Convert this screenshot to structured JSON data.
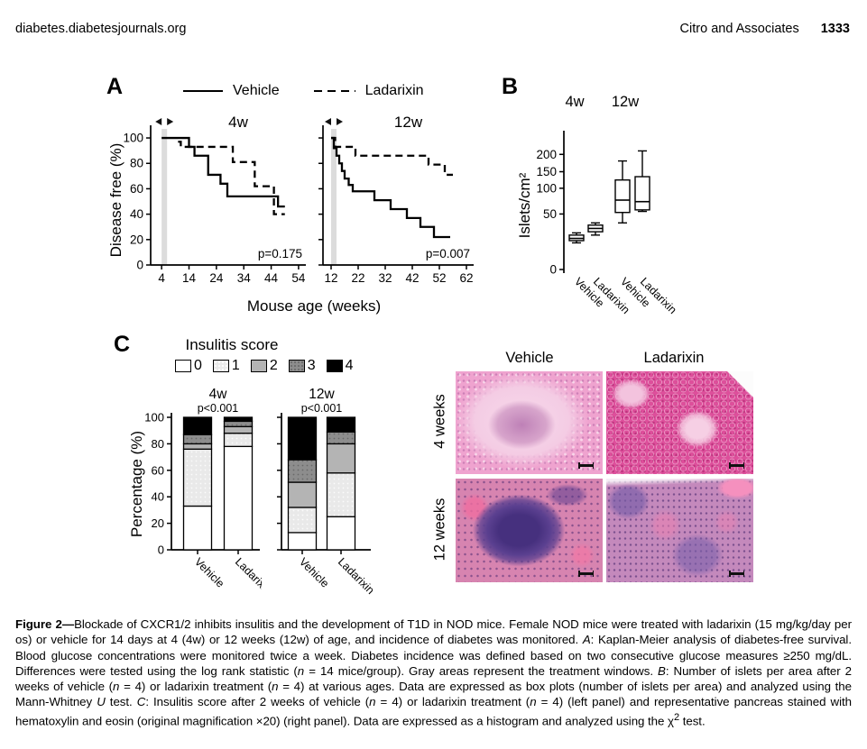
{
  "page": {
    "header_left": "diabetes.diabetesjournals.org",
    "header_right": "Citro and Associates",
    "page_number": "1333"
  },
  "panels": {
    "a": {
      "label": "A",
      "legend": [
        {
          "name": "Vehicle",
          "style": "solid"
        },
        {
          "name": "Ladarixin",
          "style": "dashed"
        }
      ],
      "ylabel": "Disease free (%)",
      "xlabel": "Mouse age (weeks)"
    },
    "b": {
      "label": "B",
      "ylabel": "Islets/cm²"
    },
    "c": {
      "label": "C",
      "title": "Insulitis score",
      "ylabel": "Percentage (%)",
      "legend": [
        "0",
        "1",
        "2",
        "3",
        "4"
      ]
    },
    "histology": {
      "columns": [
        "Vehicle",
        "Ladarixin"
      ],
      "rows": [
        "4 weeks",
        "12 weeks"
      ]
    }
  },
  "colors": {
    "treatment_window_gray": "#dcdcdc",
    "curve_black": "#000000"
  },
  "chart_data": [
    {
      "type": "line",
      "subtype": "kaplan-meier-step",
      "title": "4w",
      "p_value": "p=0.175",
      "xlabel": "Mouse age (weeks)",
      "ylabel": "Disease free (%)",
      "xticks": [
        4,
        14,
        24,
        34,
        44,
        54
      ],
      "xlim": [
        0,
        56
      ],
      "yticks": [
        0,
        20,
        40,
        60,
        80,
        100
      ],
      "ylim": [
        0,
        105
      ],
      "treatment_window": [
        4,
        6
      ],
      "series": [
        {
          "name": "Vehicle",
          "dash": false,
          "points": [
            [
              4,
              100
            ],
            [
              14,
              93
            ],
            [
              16,
              86
            ],
            [
              21,
              71
            ],
            [
              25.5,
              64
            ],
            [
              28,
              54
            ],
            [
              46.5,
              46
            ]
          ],
          "xend": 49
        },
        {
          "name": "Ladarixin",
          "dash": true,
          "points": [
            [
              10,
              97
            ],
            [
              11,
              93
            ],
            [
              30,
              81
            ],
            [
              38,
              62
            ],
            [
              45,
              40
            ]
          ],
          "xend": 49
        }
      ]
    },
    {
      "type": "line",
      "subtype": "kaplan-meier-step",
      "title": "12w",
      "p_value": "p=0.007",
      "xlabel": "Mouse age (weeks)",
      "ylabel": "Disease free (%)",
      "xticks": [
        12,
        22,
        32,
        42,
        52,
        62
      ],
      "xlim": [
        9,
        64
      ],
      "yticks": [
        0,
        20,
        40,
        60,
        80,
        100
      ],
      "ylim": [
        0,
        105
      ],
      "treatment_window": [
        12,
        14
      ],
      "series": [
        {
          "name": "Vehicle",
          "dash": false,
          "points": [
            [
              12,
              100
            ],
            [
              13,
              92
            ],
            [
              14,
              86
            ],
            [
              15,
              80
            ],
            [
              16,
              74
            ],
            [
              17,
              68
            ],
            [
              18.5,
              63
            ],
            [
              20,
              58
            ],
            [
              28,
              51
            ],
            [
              34,
              44
            ],
            [
              40,
              37
            ],
            [
              45,
              30
            ],
            [
              50,
              22
            ]
          ],
          "xend": 56
        },
        {
          "name": "Ladarixin",
          "dash": true,
          "points": [
            [
              12,
              100
            ],
            [
              13.5,
              93
            ],
            [
              21,
              86
            ],
            [
              48,
              79
            ],
            [
              54,
              71
            ]
          ],
          "xend": 57
        }
      ]
    },
    {
      "type": "box",
      "title": "Islets/cm2",
      "ylabel": "Islets/cm²",
      "yticks": [
        0,
        50,
        100,
        150,
        200
      ],
      "groups": [
        "4w",
        "12w"
      ],
      "boxes": [
        {
          "group": "4w",
          "label": "Vehicle",
          "whisker_low": 24,
          "q1": 26,
          "median": 28,
          "q3": 31,
          "whisker_high": 33
        },
        {
          "group": "4w",
          "label": "Ladarixin",
          "whisker_low": 31,
          "q1": 34,
          "median": 37,
          "q3": 40,
          "whisker_high": 42
        },
        {
          "group": "12w",
          "label": "Vehicle",
          "whisker_low": 42,
          "q1": 53,
          "median": 77,
          "q3": 125,
          "whisker_high": 181
        },
        {
          "group": "12w",
          "label": "Ladarixin",
          "whisker_low": 55,
          "q1": 58,
          "median": 74,
          "q3": 135,
          "whisker_high": 210
        }
      ]
    },
    {
      "type": "bar",
      "subtype": "stacked-percentage",
      "title": "Insulitis score",
      "ylabel": "Percentage (%)",
      "yticks": [
        0,
        20,
        40,
        60,
        80,
        100
      ],
      "score_labels": [
        "0",
        "1",
        "2",
        "3",
        "4"
      ],
      "score_colors": [
        "#ffffff",
        "#e9e9e9",
        "#b4b4b4",
        "#8d8d8d",
        "#000000"
      ],
      "groups": [
        {
          "title": "4w",
          "p": "p<0.001",
          "categories": [
            "Vehicle",
            "Ladarixin"
          ],
          "series": [
            {
              "name": "Vehicle",
              "values": [
                33,
                43,
                4,
                7,
                13
              ]
            },
            {
              "name": "Ladarixin",
              "values": [
                78,
                10,
                5,
                4,
                3
              ]
            }
          ]
        },
        {
          "title": "12w",
          "p": "p<0.001",
          "categories": [
            "Vehicle",
            "Ladarixin"
          ],
          "series": [
            {
              "name": "Vehicle",
              "values": [
                13,
                19,
                19,
                17,
                32
              ]
            },
            {
              "name": "Ladarixin",
              "values": [
                25,
                33,
                22,
                9,
                11
              ]
            }
          ]
        }
      ]
    }
  ],
  "caption_segments": [
    {
      "t": "Figure 2—",
      "b": 1
    },
    {
      "t": "Blockade of CXCR1/2 inhibits insulitis and the development of T1D in NOD mice. Female NOD mice were treated with ladarixin (15 mg/kg/day per os) or vehicle for 14 days at 4 (4w) or 12 weeks (12w) of age, and incidence of diabetes was monitored. "
    },
    {
      "t": "A",
      "i": 1
    },
    {
      "t": ": Kaplan-Meier analysis of diabetes-free survival. Blood glucose concentrations were monitored twice a week. Diabetes incidence was defined based on two consecutive glucose measures ≥250 mg/dL. Differences were tested using the log rank statistic ("
    },
    {
      "t": "n",
      "i": 1
    },
    {
      "t": " = 14 mice/group). Gray areas represent the treatment windows. "
    },
    {
      "t": "B",
      "i": 1
    },
    {
      "t": ": Number of islets per area after 2 weeks of vehicle ("
    },
    {
      "t": "n",
      "i": 1
    },
    {
      "t": " = 4) or ladarixin treatment ("
    },
    {
      "t": "n",
      "i": 1
    },
    {
      "t": " = 4) at various ages. Data are expressed as box plots (number of islets per area) and analyzed using the Mann-Whitney "
    },
    {
      "t": "U",
      "i": 1
    },
    {
      "t": " test. "
    },
    {
      "t": "C",
      "i": 1
    },
    {
      "t": ": Insulitis score after 2 weeks of vehicle ("
    },
    {
      "t": "n",
      "i": 1
    },
    {
      "t": " = 4) or ladarixin treatment ("
    },
    {
      "t": "n",
      "i": 1
    },
    {
      "t": " = 4) (left panel) and representative pancreas stained with hematoxylin and eosin (original magnification ×20) (right panel). Data are expressed as a histogram and analyzed using the χ"
    },
    {
      "t": "2",
      "sup": 1
    },
    {
      "t": " test."
    }
  ]
}
